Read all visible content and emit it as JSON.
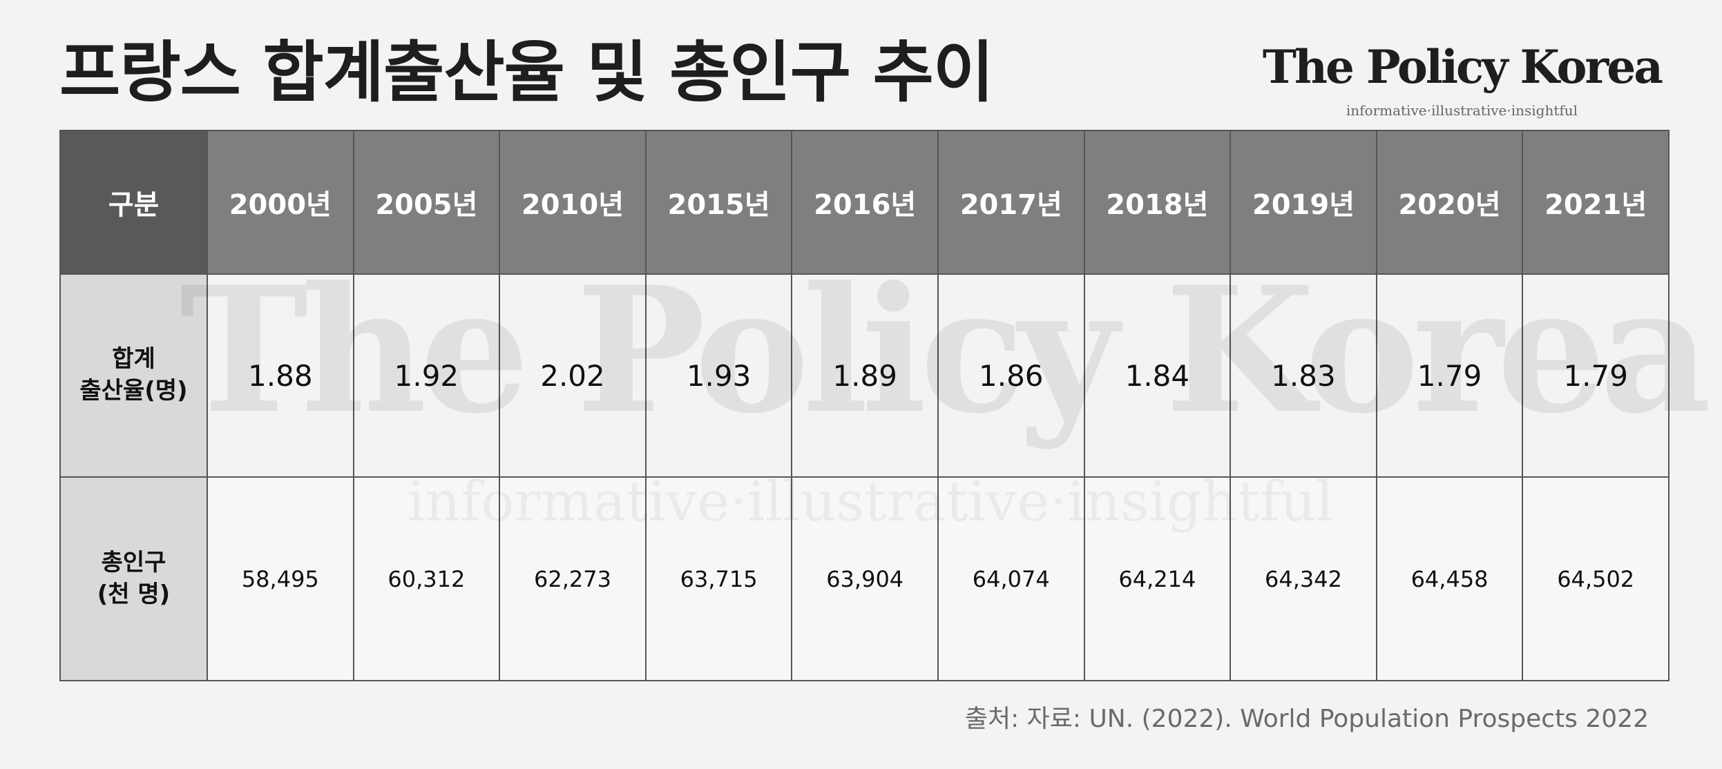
{
  "title": "프랑스 합계출산율 및 총인구 추이",
  "brand": {
    "name": "The Policy Korea",
    "tagline": "informative·illustrative·insightful"
  },
  "watermark": {
    "name": "The Policy Korea",
    "tagline": "informative·illustrative·insightful"
  },
  "source": "출처: 자료: UN. (2022). World Population Prospects 2022",
  "chart_data": {
    "type": "table",
    "title": "프랑스 합계출산율 및 총인구 추이",
    "corner_label": "구분",
    "columns": [
      "2000년",
      "2005년",
      "2010년",
      "2015년",
      "2016년",
      "2017년",
      "2018년",
      "2019년",
      "2020년",
      "2021년"
    ],
    "rows": [
      {
        "label_line1": "합계",
        "label_line2": "출산율(명)",
        "values": [
          "1.88",
          "1.92",
          "2.02",
          "1.93",
          "1.89",
          "1.86",
          "1.84",
          "1.83",
          "1.79",
          "1.79"
        ]
      },
      {
        "label_line1": "총인구",
        "label_line2": "(천 명)",
        "values": [
          "58,495",
          "60,312",
          "62,273",
          "63,715",
          "63,904",
          "64,074",
          "64,214",
          "64,342",
          "64,458",
          "64,502"
        ]
      }
    ]
  }
}
